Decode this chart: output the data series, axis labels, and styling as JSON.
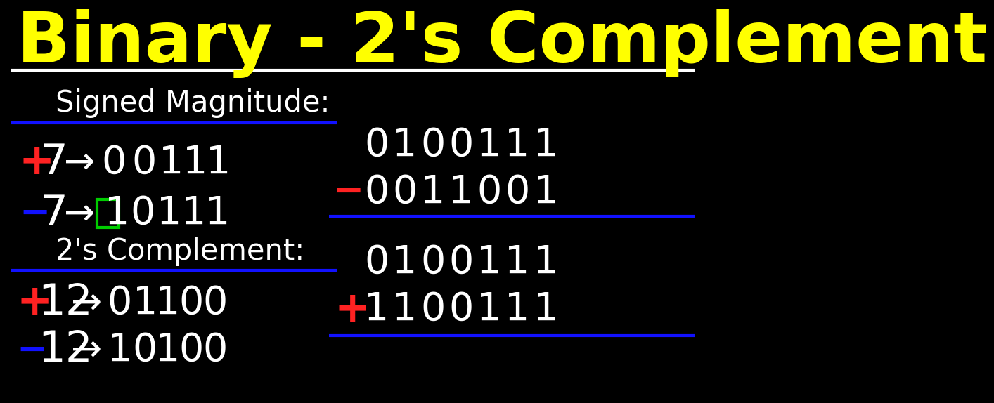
{
  "title": "Binary - 2's Complement",
  "title_color": "#FFFF00",
  "bg_color": "#000000",
  "white": "#FFFFFF",
  "blue": "#1111FF",
  "red": "#FF2222",
  "green": "#00CC00",
  "signed_magnitude_label": "Signed Magnitude:",
  "twos_complement_label": "2's Complement:"
}
